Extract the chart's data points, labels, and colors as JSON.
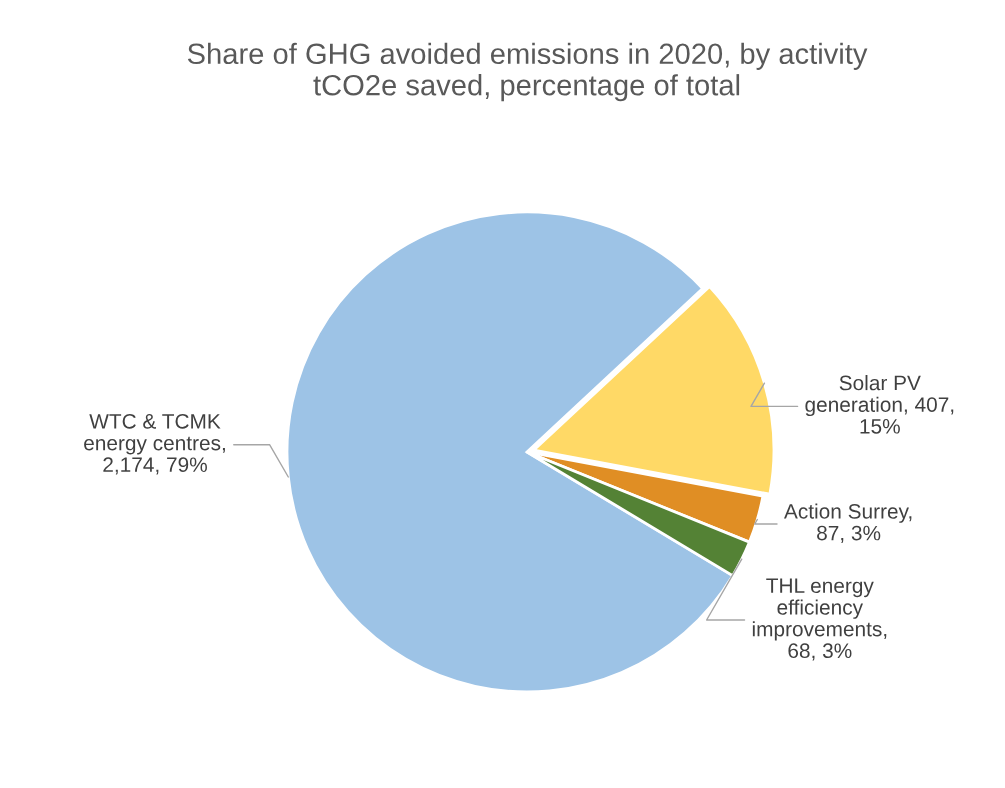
{
  "chart_data": {
    "type": "pie",
    "title": "Share of GHG avoided emissions in 2020, by activity\ntCO2e saved, percentage of total",
    "categories": [
      "WTC & TCMK\nenergy centres",
      "Solar PV\ngeneration",
      "Action Surrey",
      "THL energy\nefficiency\nimprovements"
    ],
    "values": [
      2174,
      407,
      87,
      68
    ],
    "colors": [
      "#9dc3e6",
      "#ffd966",
      "#e08e24",
      "#548235"
    ],
    "value_labels": [
      ",\n2,174, 79%",
      ", 407,\n15%",
      ",\n87, 3%",
      ",\n68, 3%"
    ],
    "legend": false
  }
}
